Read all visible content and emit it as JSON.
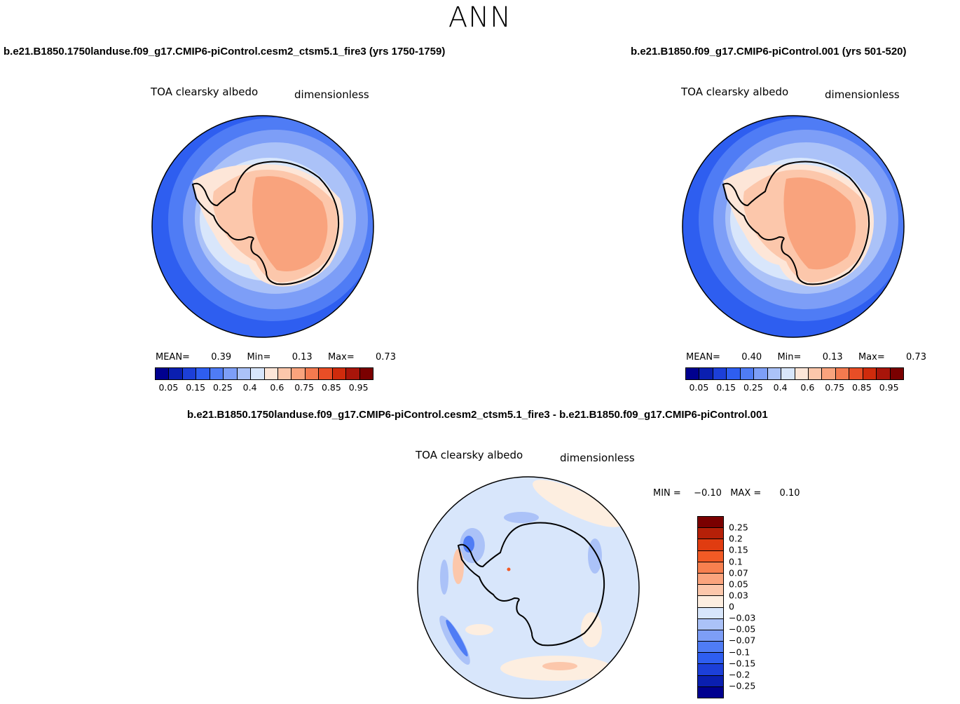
{
  "title": "ANN",
  "panels": {
    "left": {
      "case": "b.e21.B1850.1750landuse.f09_g17.CMIP6-piControl.cesm2_ctsm5.1_fire3 (yrs 1750-1759)",
      "variable": "TOA clearsky albedo",
      "units": "dimensionless",
      "mean_label": "MEAN=",
      "mean": "0.39",
      "min_label": "Min=",
      "min": "0.13",
      "max_label": "Max=",
      "max": "0.73"
    },
    "right": {
      "case": "b.e21.B1850.f09_g17.CMIP6-piControl.001 (yrs 501-520)",
      "variable": "TOA clearsky albedo",
      "units": "dimensionless",
      "mean_label": "MEAN=",
      "mean": "0.40",
      "min_label": "Min=",
      "min": "0.13",
      "max_label": "Max=",
      "max": "0.73"
    },
    "diff": {
      "case": "b.e21.B1850.1750landuse.f09_g17.CMIP6-piControl.cesm2_ctsm5.1_fire3 - b.e21.B1850.f09_g17.CMIP6-piControl.001",
      "variable": "TOA clearsky albedo",
      "units": "dimensionless",
      "min_label": "MIN =",
      "min": "−0.10",
      "max_label": "MAX =",
      "max": "0.10"
    }
  },
  "colorbar_main": {
    "colors": [
      "#00008f",
      "#0a1fb0",
      "#1c3fd8",
      "#2e5ef0",
      "#4f7cf5",
      "#7d9ef7",
      "#abc2f8",
      "#d8e6fb",
      "#fde6d8",
      "#fcc7ab",
      "#f9a37d",
      "#f47a4f",
      "#e84e26",
      "#cf2b0c",
      "#a8150a",
      "#7a0000"
    ],
    "ticks": [
      "0.05",
      "0.15",
      "0.25",
      "0.4",
      "0.6",
      "0.75",
      "0.85",
      "0.95"
    ]
  },
  "colorbar_diff": {
    "colors": [
      "#7a0000",
      "#b52008",
      "#e03c10",
      "#f25a25",
      "#f7804f",
      "#fba47d",
      "#fcc7ab",
      "#fdeee0",
      "#d8e6fb",
      "#abc2f8",
      "#7d9ef7",
      "#4f7cf5",
      "#2e5ef0",
      "#1c3fd8",
      "#0a1fb0",
      "#00008f"
    ],
    "ticks": [
      "0.25",
      "0.2",
      "0.15",
      "0.1",
      "0.07",
      "0.05",
      "0.03",
      "0",
      "−0.03",
      "−0.05",
      "−0.07",
      "−0.1",
      "−0.15",
      "−0.2",
      "−0.25"
    ]
  }
}
